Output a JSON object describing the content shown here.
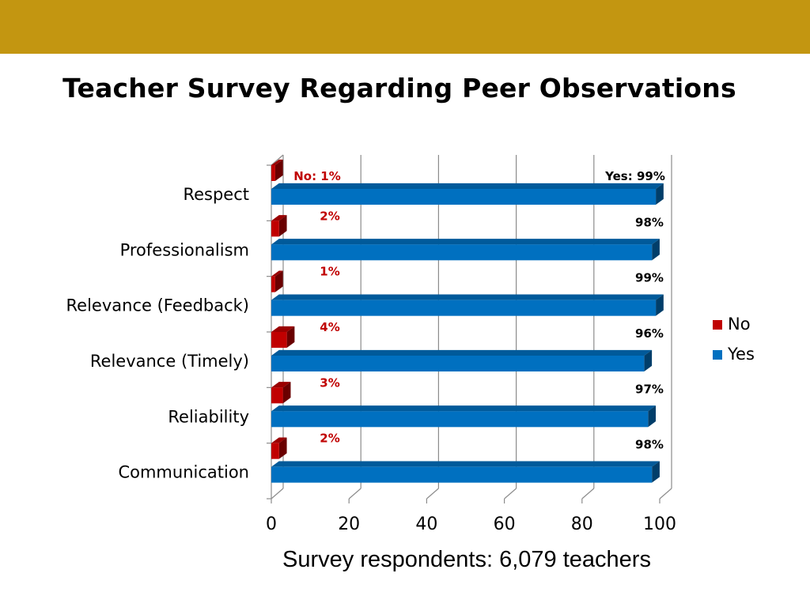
{
  "slide": {
    "title": "Teacher Survey Regarding Peer Observations",
    "footnote": "Survey respondents: 6,079 teachers"
  },
  "chart_data": {
    "type": "bar",
    "orientation": "horizontal",
    "stacked": false,
    "style": "3d",
    "categories": [
      "Respect",
      "Professionalism",
      "Relevance (Feedback)",
      "Relevance (Timely)",
      "Reliability",
      "Communication"
    ],
    "series": [
      {
        "name": "No",
        "values": [
          1,
          2,
          1,
          4,
          3,
          2
        ],
        "color": "#c00000",
        "labels": [
          "No: 1%",
          "2%",
          "1%",
          "4%",
          "3%",
          "2%"
        ]
      },
      {
        "name": "Yes",
        "values": [
          99,
          98,
          99,
          96,
          97,
          98
        ],
        "color": "#0070c0",
        "labels": [
          "Yes: 99%",
          "98%",
          "99%",
          "96%",
          "97%",
          "98%"
        ]
      }
    ],
    "xlim": [
      0,
      100
    ],
    "xticks": [
      "0",
      "20",
      "40",
      "60",
      "80",
      "100"
    ],
    "grid": true,
    "legend": {
      "position": "right",
      "entries": [
        "No",
        "Yes"
      ]
    }
  }
}
